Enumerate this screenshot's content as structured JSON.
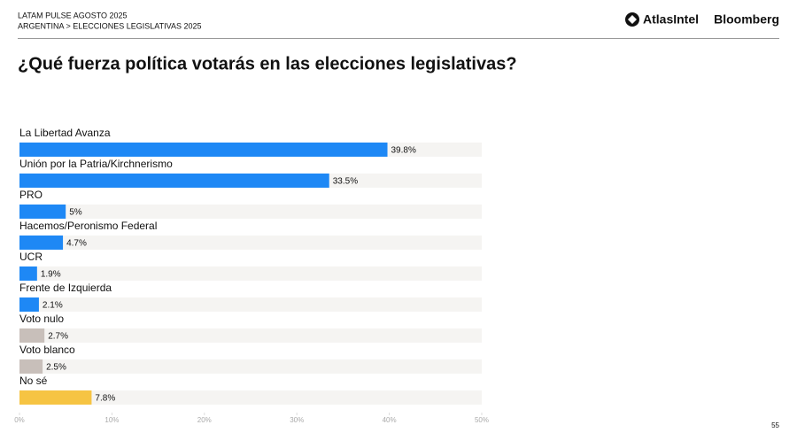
{
  "header": {
    "line1": "LATAM PULSE AGOSTO 2025",
    "line2": "ARGENTINA > ELECCIONES LEGISLATIVAS 2025",
    "logos": [
      "AtlasIntel",
      "Bloomberg"
    ]
  },
  "page_number": "55",
  "chart_data": {
    "type": "bar",
    "orientation": "horizontal",
    "title": "¿Qué fuerza política votarás en las elecciones legislativas?",
    "categories": [
      "La Libertad Avanza",
      "Unión por la Patria/Kirchnerismo",
      "PRO",
      "Hacemos/Peronismo Federal",
      "UCR",
      "Frente de Izquierda",
      "Voto nulo",
      "Voto blanco",
      "No sé"
    ],
    "values": [
      39.8,
      33.5,
      5,
      4.7,
      1.9,
      2.1,
      2.7,
      2.5,
      7.8
    ],
    "value_labels": [
      "39.8%",
      "33.5%",
      "5%",
      "4.7%",
      "1.9%",
      "2.1%",
      "2.7%",
      "2.5%",
      "7.8%"
    ],
    "colors": [
      "#1e88f5",
      "#1e88f5",
      "#1e88f5",
      "#1e88f5",
      "#1e88f5",
      "#1e88f5",
      "#c8bfba",
      "#c8bfba",
      "#f6c443"
    ],
    "xlim": [
      0,
      50
    ],
    "xticks": [
      {
        "value": 0,
        "label": "0%"
      },
      {
        "value": 10,
        "label": "10%"
      },
      {
        "value": 20,
        "label": "20%"
      },
      {
        "value": 30,
        "label": "30%"
      },
      {
        "value": 40,
        "label": "40%"
      },
      {
        "value": 50,
        "label": "50%"
      }
    ],
    "grid": false
  }
}
